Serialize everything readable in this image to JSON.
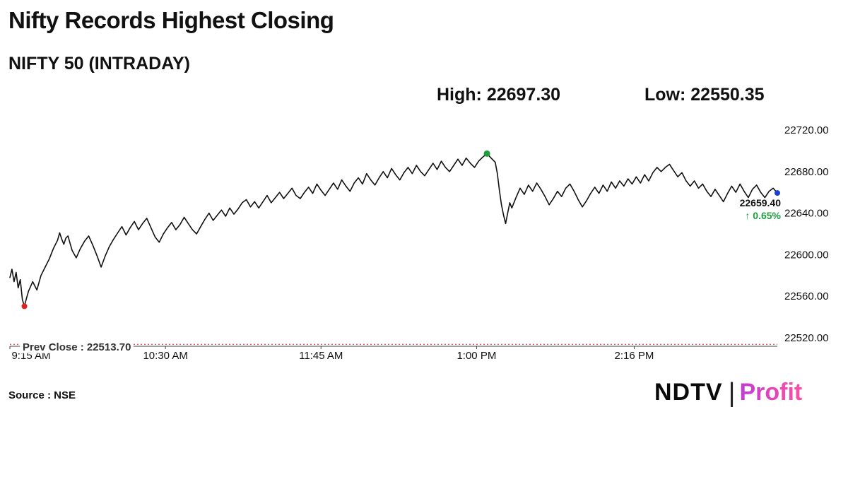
{
  "header": {
    "title": "Nifty Records Highest Closing",
    "subtitle": "NIFTY 50 (INTRADAY)",
    "high_label": "High: 22697.30",
    "low_label": "Low: 22550.35"
  },
  "footer": {
    "source": "Source : NSE",
    "brand_ndtv": "NDTV",
    "brand_separator": "|",
    "brand_profit": "Profit"
  },
  "colors": {
    "line": "#111111",
    "axis": "#444444",
    "tick_text": "#111111",
    "low_marker": "#e02020",
    "high_marker": "#1e9e3e",
    "last_marker": "#1a3fd4",
    "prev_close_line": "#e02020",
    "change_text": "#1e9e3e"
  },
  "chart_data": {
    "type": "line",
    "title": "NIFTY 50 (INTRADAY)",
    "xlabel": "",
    "ylabel": "",
    "x_unit": "minutes since 9:15 AM",
    "ylim": [
      22505,
      22725
    ],
    "grid": false,
    "legend": "none",
    "high": 22697.3,
    "low": 22550.35,
    "prev_close": {
      "label": "Prev Close : 22513.70",
      "value": 22513.7
    },
    "last": {
      "value": 22659.4,
      "label": "22659.40",
      "change_label": "↑ 0.65%"
    },
    "y_ticks": [
      {
        "value": 22720,
        "label": "22720.00"
      },
      {
        "value": 22680,
        "label": "22680.00"
      },
      {
        "value": 22640,
        "label": "22640.00"
      },
      {
        "value": 22600,
        "label": "22600.00"
      },
      {
        "value": 22560,
        "label": "22560.00"
      },
      {
        "value": 22520,
        "label": "22520.00"
      }
    ],
    "x_ticks": [
      {
        "t": 0,
        "label": "9:15 AM"
      },
      {
        "t": 75,
        "label": "10:30 AM"
      },
      {
        "t": 150,
        "label": "11:45 AM"
      },
      {
        "t": 225,
        "label": "1:00 PM"
      },
      {
        "t": 301,
        "label": "2:16 PM"
      }
    ],
    "markers": [
      {
        "name": "low-marker",
        "t": 7,
        "value": 22550.35,
        "color": "#e02020",
        "r": 4
      },
      {
        "name": "high-marker",
        "t": 230,
        "value": 22697.3,
        "color": "#1e9e3e",
        "r": 4.5
      },
      {
        "name": "last-marker",
        "t": 370,
        "value": 22659.4,
        "color": "#1a3fd4",
        "r": 4
      }
    ],
    "points": [
      [
        0,
        22578
      ],
      [
        1,
        22586
      ],
      [
        2,
        22574
      ],
      [
        3,
        22583
      ],
      [
        4,
        22568
      ],
      [
        5,
        22576
      ],
      [
        6,
        22557
      ],
      [
        7,
        22550.35
      ],
      [
        8,
        22558
      ],
      [
        9,
        22565
      ],
      [
        11,
        22574
      ],
      [
        13,
        22566
      ],
      [
        15,
        22580
      ],
      [
        17,
        22588
      ],
      [
        19,
        22596
      ],
      [
        21,
        22606
      ],
      [
        23,
        22614
      ],
      [
        24,
        22621
      ],
      [
        25,
        22615
      ],
      [
        26,
        22610
      ],
      [
        27,
        22616
      ],
      [
        28,
        22618
      ],
      [
        29,
        22611
      ],
      [
        30,
        22604
      ],
      [
        32,
        22597
      ],
      [
        34,
        22606
      ],
      [
        36,
        22613
      ],
      [
        38,
        22618
      ],
      [
        40,
        22609
      ],
      [
        42,
        22599
      ],
      [
        44,
        22588
      ],
      [
        46,
        22599
      ],
      [
        48,
        22608
      ],
      [
        50,
        22615
      ],
      [
        52,
        22621
      ],
      [
        54,
        22627
      ],
      [
        56,
        22619
      ],
      [
        58,
        22626
      ],
      [
        60,
        22632
      ],
      [
        62,
        22624
      ],
      [
        64,
        22630
      ],
      [
        66,
        22635
      ],
      [
        68,
        22626
      ],
      [
        70,
        22617
      ],
      [
        72,
        22612
      ],
      [
        74,
        22620
      ],
      [
        76,
        22626
      ],
      [
        78,
        22631
      ],
      [
        80,
        22624
      ],
      [
        82,
        22629
      ],
      [
        84,
        22636
      ],
      [
        86,
        22630
      ],
      [
        88,
        22624
      ],
      [
        90,
        22620
      ],
      [
        92,
        22627
      ],
      [
        94,
        22634
      ],
      [
        96,
        22640
      ],
      [
        98,
        22633
      ],
      [
        100,
        22638
      ],
      [
        102,
        22643
      ],
      [
        104,
        22637
      ],
      [
        106,
        22645
      ],
      [
        108,
        22639
      ],
      [
        110,
        22644
      ],
      [
        112,
        22650
      ],
      [
        114,
        22653
      ],
      [
        116,
        22646
      ],
      [
        118,
        22651
      ],
      [
        120,
        22645
      ],
      [
        122,
        22651
      ],
      [
        124,
        22657
      ],
      [
        126,
        22650
      ],
      [
        128,
        22655
      ],
      [
        130,
        22660
      ],
      [
        132,
        22654
      ],
      [
        134,
        22659
      ],
      [
        136,
        22664
      ],
      [
        138,
        22657
      ],
      [
        140,
        22654
      ],
      [
        142,
        22660
      ],
      [
        144,
        22665
      ],
      [
        146,
        22659
      ],
      [
        148,
        22668
      ],
      [
        150,
        22662
      ],
      [
        152,
        22657
      ],
      [
        154,
        22663
      ],
      [
        156,
        22669
      ],
      [
        158,
        22663
      ],
      [
        160,
        22672
      ],
      [
        162,
        22666
      ],
      [
        164,
        22661
      ],
      [
        166,
        22669
      ],
      [
        168,
        22674
      ],
      [
        170,
        22668
      ],
      [
        172,
        22678
      ],
      [
        174,
        22672
      ],
      [
        176,
        22667
      ],
      [
        178,
        22674
      ],
      [
        180,
        22680
      ],
      [
        182,
        22674
      ],
      [
        184,
        22683
      ],
      [
        186,
        22677
      ],
      [
        188,
        22672
      ],
      [
        190,
        22679
      ],
      [
        192,
        22684
      ],
      [
        194,
        22678
      ],
      [
        196,
        22686
      ],
      [
        198,
        22680
      ],
      [
        200,
        22676
      ],
      [
        202,
        22682
      ],
      [
        204,
        22688
      ],
      [
        206,
        22682
      ],
      [
        208,
        22690
      ],
      [
        210,
        22684
      ],
      [
        212,
        22680
      ],
      [
        214,
        22686
      ],
      [
        216,
        22692
      ],
      [
        218,
        22686
      ],
      [
        220,
        22693
      ],
      [
        222,
        22688
      ],
      [
        224,
        22684
      ],
      [
        226,
        22690
      ],
      [
        228,
        22694
      ],
      [
        230,
        22697.3
      ],
      [
        232,
        22693
      ],
      [
        234,
        22689
      ],
      [
        235,
        22678
      ],
      [
        236,
        22662
      ],
      [
        237,
        22648
      ],
      [
        238,
        22638
      ],
      [
        239,
        22630
      ],
      [
        240,
        22640
      ],
      [
        241,
        22650
      ],
      [
        242,
        22645
      ],
      [
        244,
        22655
      ],
      [
        246,
        22664
      ],
      [
        248,
        22658
      ],
      [
        250,
        22667
      ],
      [
        252,
        22661
      ],
      [
        254,
        22669
      ],
      [
        256,
        22663
      ],
      [
        258,
        22656
      ],
      [
        260,
        22648
      ],
      [
        262,
        22654
      ],
      [
        264,
        22661
      ],
      [
        266,
        22656
      ],
      [
        268,
        22664
      ],
      [
        270,
        22668
      ],
      [
        272,
        22661
      ],
      [
        274,
        22653
      ],
      [
        276,
        22646
      ],
      [
        278,
        22652
      ],
      [
        280,
        22659
      ],
      [
        282,
        22665
      ],
      [
        284,
        22659
      ],
      [
        286,
        22667
      ],
      [
        288,
        22661
      ],
      [
        290,
        22670
      ],
      [
        292,
        22664
      ],
      [
        294,
        22671
      ],
      [
        296,
        22666
      ],
      [
        298,
        22673
      ],
      [
        300,
        22668
      ],
      [
        302,
        22675
      ],
      [
        304,
        22669
      ],
      [
        306,
        22677
      ],
      [
        308,
        22671
      ],
      [
        310,
        22679
      ],
      [
        312,
        22684
      ],
      [
        314,
        22680
      ],
      [
        316,
        22684
      ],
      [
        318,
        22687
      ],
      [
        320,
        22681
      ],
      [
        322,
        22675
      ],
      [
        324,
        22679
      ],
      [
        326,
        22671
      ],
      [
        328,
        22666
      ],
      [
        330,
        22671
      ],
      [
        332,
        22664
      ],
      [
        334,
        22668
      ],
      [
        336,
        22661
      ],
      [
        338,
        22656
      ],
      [
        340,
        22663
      ],
      [
        342,
        22657
      ],
      [
        344,
        22651
      ],
      [
        346,
        22659
      ],
      [
        348,
        22666
      ],
      [
        350,
        22660
      ],
      [
        352,
        22668
      ],
      [
        354,
        22661
      ],
      [
        356,
        22655
      ],
      [
        358,
        22663
      ],
      [
        360,
        22667
      ],
      [
        362,
        22660
      ],
      [
        364,
        22655
      ],
      [
        366,
        22661
      ],
      [
        368,
        22664
      ],
      [
        370,
        22659.4
      ]
    ]
  }
}
